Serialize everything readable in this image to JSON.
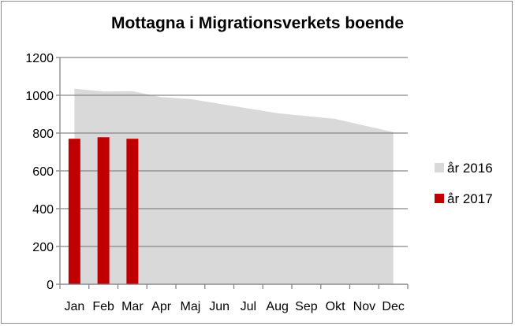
{
  "chart_data": {
    "type": "area",
    "title": "Mottagna i Migrationsverkets boende",
    "categories": [
      "Jan",
      "Feb",
      "Mar",
      "Apr",
      "Maj",
      "Jun",
      "Jul",
      "Aug",
      "Sep",
      "Okt",
      "Nov",
      "Dec"
    ],
    "ylim": [
      0,
      1200
    ],
    "yticks": [
      0,
      200,
      400,
      600,
      800,
      1000,
      1200
    ],
    "grid": true,
    "legend_position": "right",
    "series": [
      {
        "name": "år 2016",
        "type": "area",
        "color": "#d9d9d9",
        "values": [
          1035,
          1020,
          1022,
          990,
          980,
          955,
          930,
          905,
          890,
          875,
          840,
          805
        ]
      },
      {
        "name": "år 2017",
        "type": "bar",
        "color": "#c00000",
        "values": [
          770,
          778,
          770,
          null,
          null,
          null,
          null,
          null,
          null,
          null,
          null,
          null
        ]
      }
    ]
  }
}
